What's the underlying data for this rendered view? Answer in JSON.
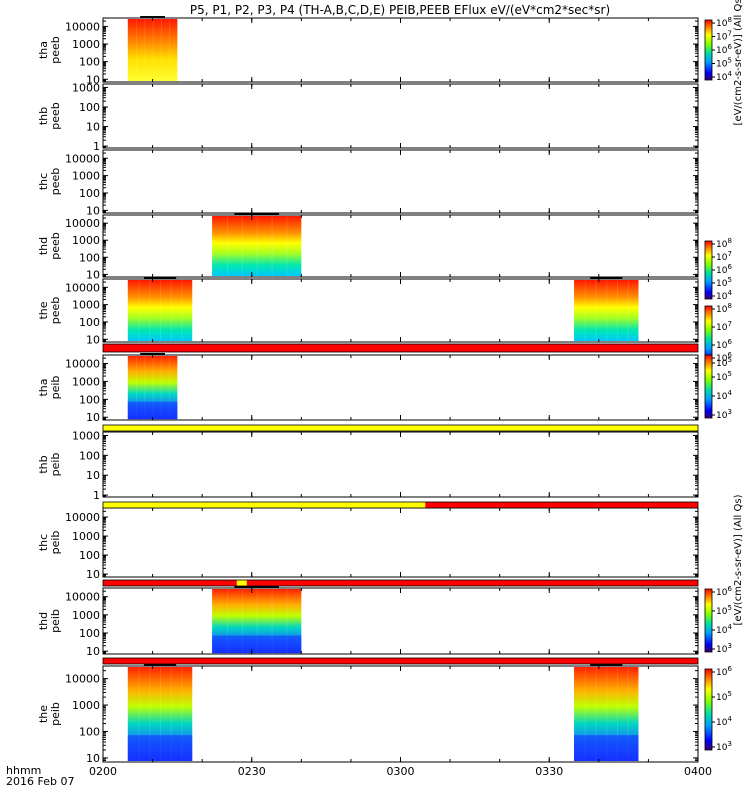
{
  "title": "P5, P1, P2, P3, P4 (TH-A,B,C,D,E) PEIB,PEEB EFlux eV/(eV*cm2*sec*sr)",
  "x_axis": {
    "corner_label": "hhmm",
    "date_label": "2016 Feb 07",
    "tick_labels": [
      "0200",
      "0230",
      "0300",
      "0330",
      "0400"
    ]
  },
  "colorbar_units": {
    "top": "[eV/(cm2-s-sr-eV)] (All Qs)",
    "wide": "[eV/(cm2-s-sr-eV)] (All Qs)"
  },
  "colors": {
    "red_bar": "#ff0000",
    "yellow_bar": "#ffff00",
    "axis": "#000000",
    "background": "#ffffff"
  },
  "chart_data": {
    "type": "heatmap",
    "x_range": [
      "02:00",
      "04:00"
    ],
    "panels": [
      {
        "id": "tha-peeb",
        "ylabel": [
          "tha",
          "peeb"
        ],
        "y_tick_labels": [
          "10",
          "100",
          "1000",
          "10000"
        ],
        "y_log_range": [
          7,
          30000
        ],
        "data_intervals": [
          [
            "02:05",
            "02:15"
          ]
        ],
        "colorbar_ticks": [
          "10^8",
          "10^7",
          "10^6",
          "10^5",
          "10^4"
        ]
      },
      {
        "id": "thb-peeb",
        "ylabel": [
          "thb",
          "peeb"
        ],
        "y_tick_labels": [
          "1",
          "10",
          "100",
          "1000"
        ],
        "y_log_range": [
          0.8,
          1500
        ],
        "data_intervals": []
      },
      {
        "id": "thc-peeb",
        "ylabel": [
          "thc",
          "peeb"
        ],
        "y_tick_labels": [
          "10",
          "100",
          "1000",
          "10000"
        ],
        "y_log_range": [
          7,
          30000
        ],
        "data_intervals": []
      },
      {
        "id": "thd-peeb",
        "ylabel": [
          "thd",
          "peeb"
        ],
        "y_tick_labels": [
          "10",
          "100",
          "1000",
          "10000"
        ],
        "y_log_range": [
          7,
          30000
        ],
        "data_intervals": [
          [
            "02:22",
            "02:40"
          ]
        ],
        "colorbar_ticks": [
          "10^8",
          "10^7",
          "10^6",
          "10^5",
          "10^4"
        ]
      },
      {
        "id": "the-peeb",
        "ylabel": [
          "the",
          "peeb"
        ],
        "y_tick_labels": [
          "10",
          "100",
          "1000",
          "10000"
        ],
        "y_log_range": [
          7,
          30000
        ],
        "data_intervals": [
          [
            "02:05",
            "02:18"
          ],
          [
            "03:35",
            "03:48"
          ]
        ],
        "colorbar_ticks": [
          "10^8",
          "10^7",
          "10^6",
          "10^5"
        ]
      },
      {
        "id": "tha-peib",
        "ylabel": [
          "tha",
          "peib"
        ],
        "y_tick_labels": [
          "10",
          "100",
          "1000",
          "10000"
        ],
        "y_log_range": [
          7,
          30000
        ],
        "data_intervals": [
          [
            "02:05",
            "02:15"
          ]
        ],
        "colorbar_ticks": [
          "10^6",
          "10^5",
          "10^4",
          "10^3"
        ]
      },
      {
        "id": "thb-peib",
        "ylabel": [
          "thb",
          "peib"
        ],
        "y_tick_labels": [
          "1",
          "10",
          "100",
          "1000"
        ],
        "y_log_range": [
          0.8,
          1500
        ],
        "data_intervals": []
      },
      {
        "id": "thc-peib",
        "ylabel": [
          "thc",
          "peib"
        ],
        "y_tick_labels": [
          "10",
          "100",
          "1000",
          "10000"
        ],
        "y_log_range": [
          7,
          30000
        ],
        "data_intervals": []
      },
      {
        "id": "thd-peib",
        "ylabel": [
          "thd",
          "peib"
        ],
        "y_tick_labels": [
          "10",
          "100",
          "1000",
          "10000"
        ],
        "y_log_range": [
          7,
          30000
        ],
        "data_intervals": [
          [
            "02:22",
            "02:40"
          ]
        ],
        "colorbar_ticks": [
          "10^6",
          "10^5",
          "10^4",
          "10^3"
        ]
      },
      {
        "id": "the-peib",
        "ylabel": [
          "the",
          "peib"
        ],
        "y_tick_labels": [
          "10",
          "100",
          "1000",
          "10000"
        ],
        "y_log_range": [
          7,
          30000
        ],
        "data_intervals": [
          [
            "02:05",
            "02:18"
          ],
          [
            "03:35",
            "03:48"
          ]
        ],
        "colorbar_ticks": [
          "10^6",
          "10^5",
          "10^4",
          "10^3"
        ]
      }
    ],
    "flag_bars": [
      {
        "below_panel": "the-peeb",
        "segments": [
          {
            "from": "02:00",
            "to": "04:00",
            "color": "red"
          }
        ]
      },
      {
        "below_panel": "tha-peib",
        "segments": [
          {
            "from": "02:00",
            "to": "04:00",
            "color": "yellow"
          }
        ]
      },
      {
        "below_panel": "thb-peib",
        "segments": [
          {
            "from": "02:00",
            "to": "03:05",
            "color": "yellow"
          },
          {
            "from": "03:05",
            "to": "04:00",
            "color": "red"
          }
        ]
      },
      {
        "below_panel": "thc-peib",
        "segments": [
          {
            "from": "02:00",
            "to": "02:27",
            "color": "red"
          },
          {
            "from": "02:27",
            "to": "02:29",
            "color": "yellow"
          },
          {
            "from": "02:29",
            "to": "04:00",
            "color": "red"
          }
        ]
      },
      {
        "below_panel": "thd-peib",
        "segments": [
          {
            "from": "02:00",
            "to": "04:00",
            "color": "red"
          }
        ]
      }
    ]
  }
}
